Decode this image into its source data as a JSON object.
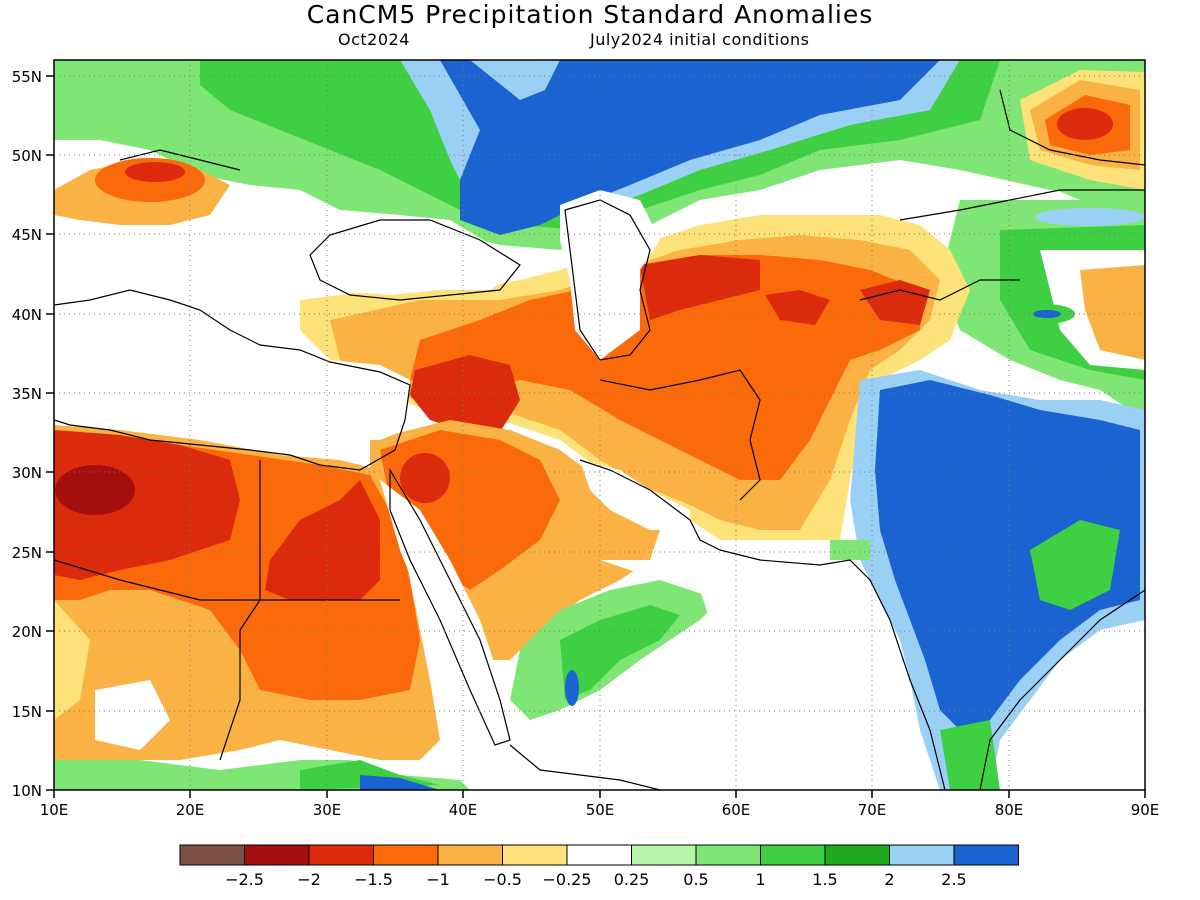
{
  "title": "CanCM5 Precipitation Standard Anomalies",
  "forecast_month": "Oct2024",
  "initial_conditions": "July2024 initial conditions",
  "map": {
    "lon_range": [
      10,
      90
    ],
    "lat_range": [
      10,
      56
    ],
    "lon_labels": [
      "10E",
      "20E",
      "30E",
      "40E",
      "50E",
      "60E",
      "70E",
      "80E",
      "90E"
    ],
    "lat_labels": [
      "10N",
      "15N",
      "20N",
      "25N",
      "30N",
      "35N",
      "40N",
      "45N",
      "50N",
      "55N"
    ],
    "grid": "dotted"
  },
  "colorbar": {
    "colors": [
      "#7a5144",
      "#a50f0f",
      "#dc2a0c",
      "#fa6a0a",
      "#fbb245",
      "#fde27a",
      "#ffffff",
      "#b8f5a8",
      "#7fe676",
      "#3fcf42",
      "#1ea91e",
      "#9bd0f5",
      "#1b63d0"
    ],
    "labels": [
      "−2.5",
      "−2",
      "−1.5",
      "−1",
      "−0.5",
      "−0.25",
      "0.25",
      "0.5",
      "1",
      "1.5",
      "2",
      "2.5"
    ]
  }
}
